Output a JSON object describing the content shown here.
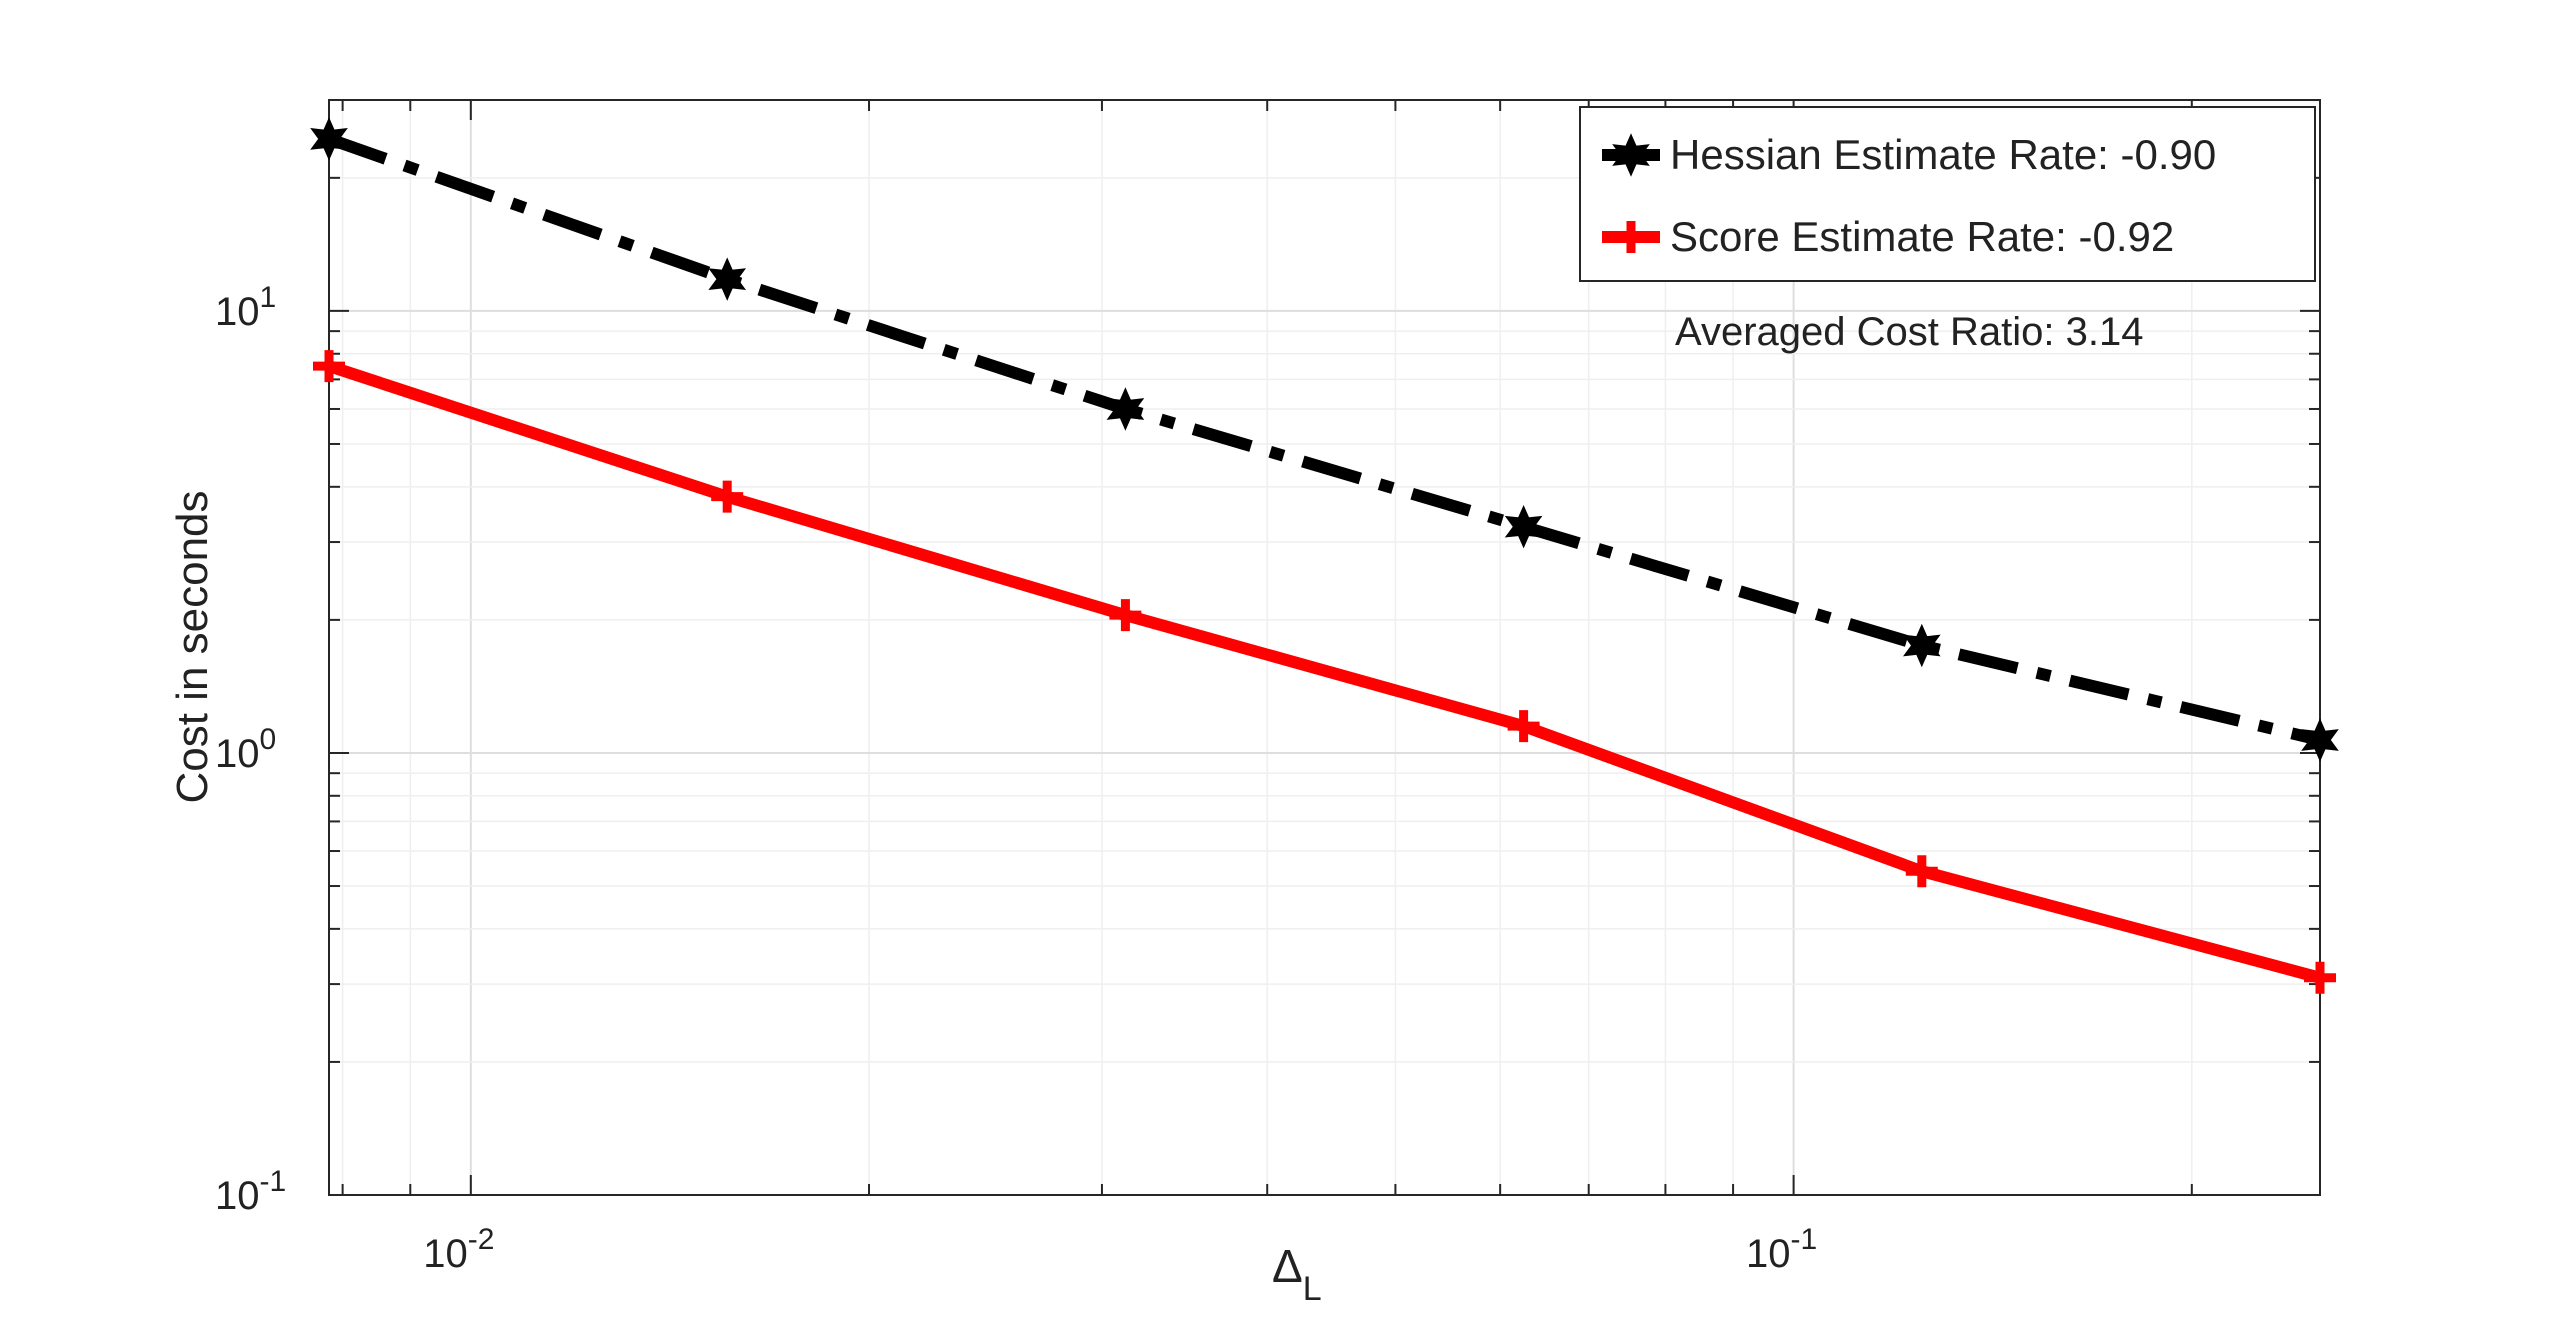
{
  "chart_data": {
    "type": "line",
    "xscale": "log",
    "yscale": "log",
    "xlabel": "Δ",
    "xlabel_subscript": "L",
    "ylabel": "Cost in seconds",
    "xlim": [
      0.0078125,
      0.25
    ],
    "ylim": [
      0.1,
      30
    ],
    "grid": true,
    "legend_position": "top-right",
    "x_ticks": [
      {
        "value": 0.01,
        "base": "10",
        "exp": "-2"
      },
      {
        "value": 0.1,
        "base": "10",
        "exp": "-1"
      }
    ],
    "y_ticks": [
      {
        "value": 0.1,
        "base": "10",
        "exp": "-1"
      },
      {
        "value": 1,
        "base": "10",
        "exp": "0"
      },
      {
        "value": 10,
        "base": "10",
        "exp": "1"
      }
    ],
    "x": [
      0.0078125,
      0.015625,
      0.03125,
      0.0625,
      0.125,
      0.25
    ],
    "series": [
      {
        "name": "Hessian Estimate Rate: -0.90",
        "color": "#000000",
        "line_style": "dashdot",
        "marker": "hexagram",
        "values": [
          24.5,
          11.8,
          6.0,
          3.25,
          1.75,
          1.07
        ]
      },
      {
        "name": "Score Estimate Rate: -0.92",
        "color": "#ff0000",
        "line_style": "solid",
        "marker": "plus",
        "values": [
          7.5,
          3.8,
          2.05,
          1.15,
          0.54,
          0.31
        ]
      }
    ],
    "annotations": [
      {
        "text": "Averaged Cost Ratio: 3.14"
      }
    ]
  }
}
